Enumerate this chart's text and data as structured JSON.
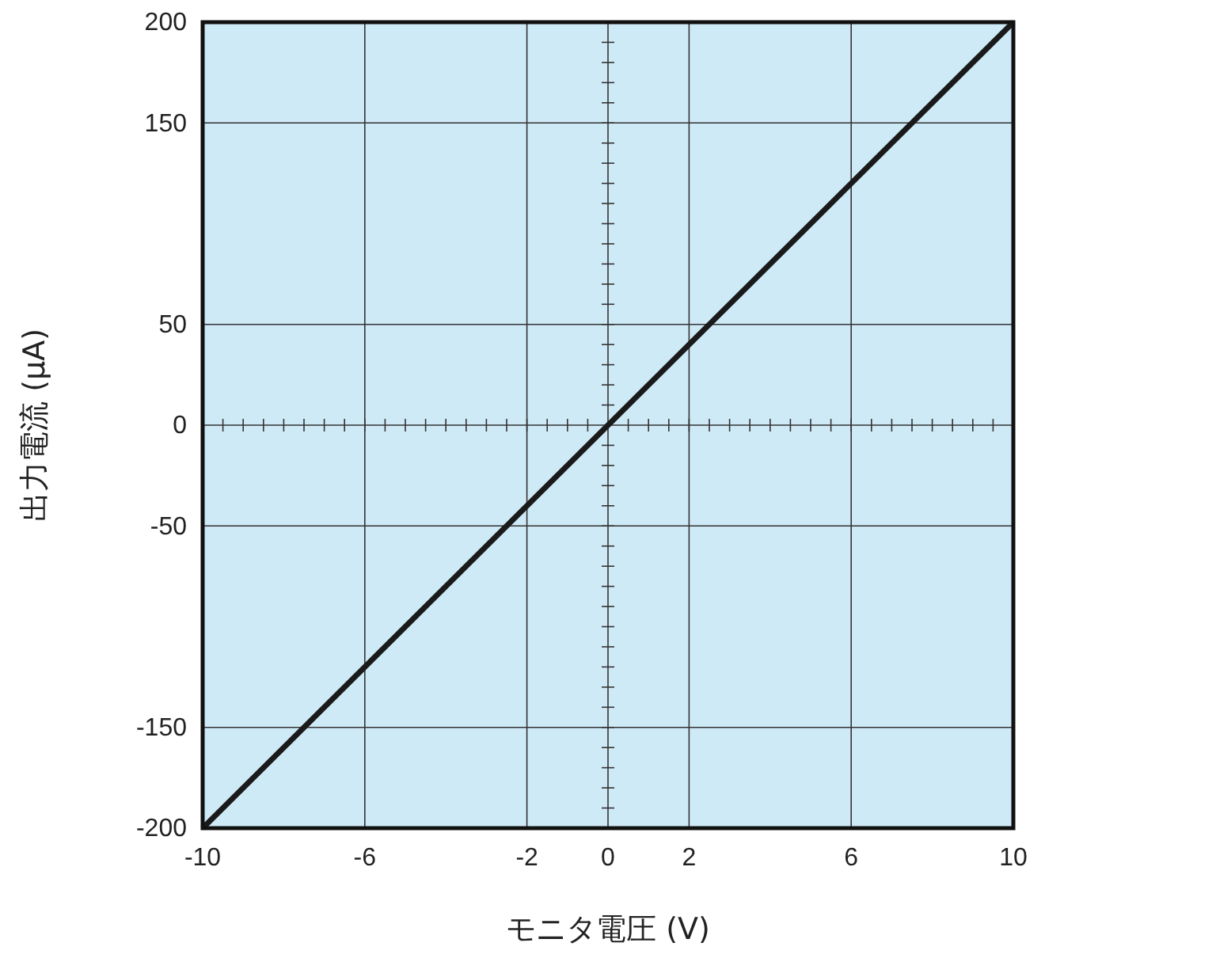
{
  "chart_data": {
    "type": "line",
    "xlabel": "モニタ電圧 (V)",
    "ylabel": "出力電流 (μA)",
    "x": [
      -10,
      10
    ],
    "series": [
      {
        "color": "#1a1a1a",
        "values": [
          -200,
          200
        ]
      }
    ],
    "xlim": [
      -10,
      10
    ],
    "xticks": [
      -10,
      -6,
      -2,
      0,
      2,
      6,
      10
    ],
    "ylim": [
      -200,
      200
    ],
    "yticks": [
      -200,
      -150,
      -50,
      0,
      50,
      150,
      200
    ],
    "grid": true,
    "marker": "none",
    "line_style": "solid"
  }
}
